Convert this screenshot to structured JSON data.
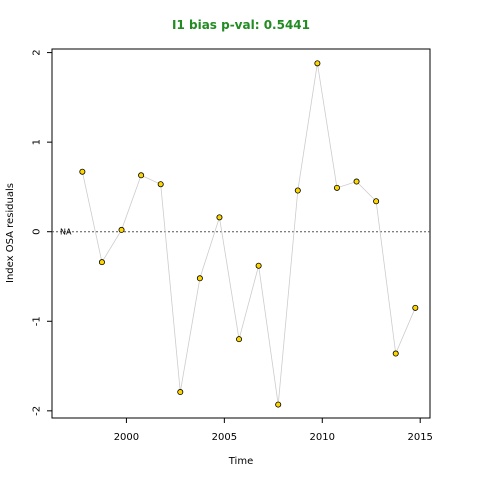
{
  "chart_data": {
    "type": "scatter",
    "title": "I1 bias p-val: 0.5441",
    "title_color": "#228B22",
    "xlabel": "Time",
    "ylabel": "Index OSA residuals",
    "xlim": [
      1996.2,
      2015.5
    ],
    "ylim": [
      -2.08,
      2.04
    ],
    "x_ticks": [
      2000,
      2005,
      2010,
      2015
    ],
    "y_ticks": [
      -2,
      -1,
      0,
      1,
      2
    ],
    "reference_line": {
      "y": 0,
      "label": "NA",
      "style": "dotted"
    },
    "line_color": "#cccccc",
    "point_fill": "#FFD700",
    "point_stroke": "#000000",
    "grid": false,
    "series": [
      {
        "x": [
          1997.75,
          1998.75,
          1999.75,
          2000.75,
          2001.75,
          2002.75,
          2003.75,
          2004.75,
          2005.75,
          2006.75,
          2007.75,
          2008.75,
          2009.75,
          2010.75,
          2011.75,
          2012.75,
          2013.75,
          2014.75
        ],
        "y": [
          0.67,
          -0.34,
          0.02,
          0.63,
          0.53,
          -1.79,
          -0.52,
          0.16,
          -1.2,
          -0.38,
          -1.93,
          0.46,
          1.88,
          0.49,
          0.56,
          0.34,
          -1.36,
          -0.85
        ]
      }
    ]
  }
}
